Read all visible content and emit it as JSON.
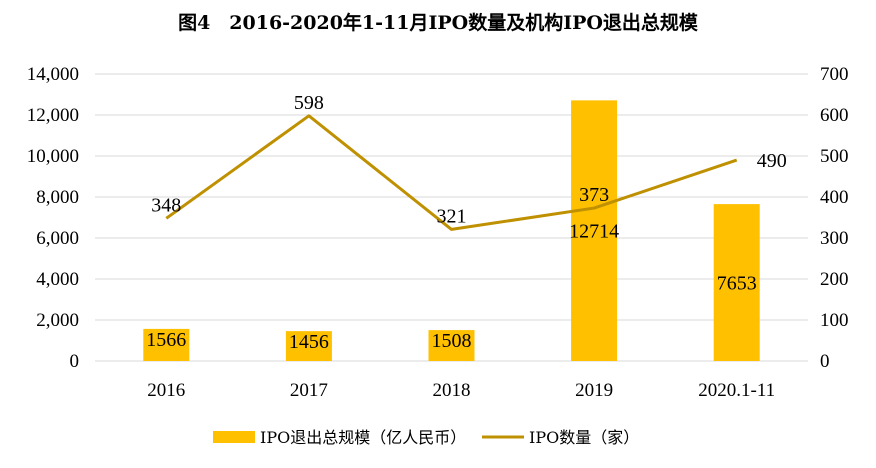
{
  "chart_data": {
    "type": "bar",
    "title": "图4　2016-2020年1-11月IPO数量及机构IPO退出总规模",
    "categories": [
      "2016",
      "2017",
      "2018",
      "2019",
      "2020.1-11"
    ],
    "series": [
      {
        "name": "IPO退出总规模（亿人民币）",
        "type": "bar",
        "axis": "left",
        "color": "#FFC000",
        "values": [
          1566,
          1456,
          1508,
          12714,
          7653
        ]
      },
      {
        "name": "IPO数量（家）",
        "type": "line",
        "axis": "right",
        "color": "#BF9000",
        "values": [
          348,
          598,
          321,
          373,
          490
        ]
      }
    ],
    "y_left": {
      "range": [
        0,
        14000
      ],
      "ticks": [
        "0",
        "2,000",
        "4,000",
        "6,000",
        "8,000",
        "10,000",
        "12,000",
        "14,000"
      ]
    },
    "y_right": {
      "range": [
        0,
        700
      ],
      "ticks": [
        "0",
        "100",
        "200",
        "300",
        "400",
        "500",
        "600",
        "700"
      ]
    },
    "grid": true,
    "legend_position": "bottom"
  }
}
